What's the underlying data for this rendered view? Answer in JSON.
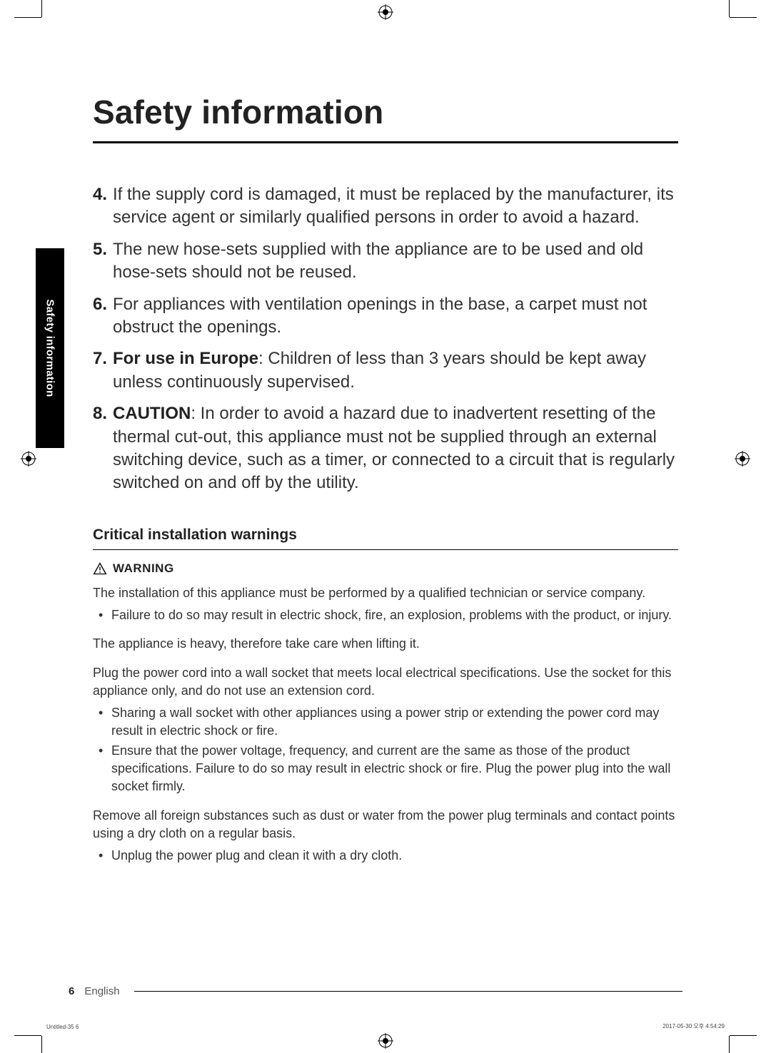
{
  "title": "Safety information",
  "side_tab": "Safety information",
  "numbered_items": [
    {
      "num": "4.",
      "bold_prefix": "",
      "text": "If the supply cord is damaged, it must be replaced by the manufacturer, its service agent or similarly qualified persons in order to avoid a hazard."
    },
    {
      "num": "5.",
      "bold_prefix": "",
      "text": "The new hose-sets supplied with the appliance are to be used and old hose-sets should not be reused."
    },
    {
      "num": "6.",
      "bold_prefix": "",
      "text": "For appliances with ventilation openings in the base, a carpet must not obstruct the openings."
    },
    {
      "num": "7.",
      "bold_prefix": "For use in Europe",
      "text": ": Children of less than 3 years should be kept away unless continuously supervised."
    },
    {
      "num": "8.",
      "bold_prefix": "CAUTION",
      "text": ": In order to avoid a hazard due to inadvertent resetting of the thermal cut-out, this appliance must not be supplied through an external switching device, such as a timer, or connected to a circuit that is regularly switched on and off by the utility."
    }
  ],
  "subsection_heading": "Critical installation warnings",
  "warning_label": "WARNING",
  "groups": [
    {
      "para": "The installation of this appliance must be performed by a qualified technician or service company.",
      "bullets": [
        "Failure to do so may result in electric shock, fire, an explosion, problems with the product, or injury."
      ]
    },
    {
      "para": "The appliance is heavy, therefore take care when lifting it.",
      "bullets": []
    },
    {
      "para": "Plug the power cord into a wall socket that meets local electrical specifications. Use the socket for this appliance only, and do not use an extension cord.",
      "bullets": [
        "Sharing a wall socket with other appliances using a power strip or extending the power cord may result in electric shock or fire.",
        "Ensure that the power voltage, frequency, and current are the same as those of the product specifications. Failure to do so may result in electric shock or fire. Plug the power plug into the wall socket firmly."
      ]
    },
    {
      "para": "Remove all foreign substances such as dust or water from the power plug terminals and contact points using a dry cloth on a regular basis.",
      "bullets": [
        "Unplug the power plug and clean it with a dry cloth."
      ]
    }
  ],
  "footer": {
    "page": "6",
    "lang": "English"
  },
  "tiny_left": "Untitled-35   6",
  "tiny_right": "2017-05-30   오후 4:54:29",
  "colors": {
    "text": "#333333",
    "black": "#000000",
    "rule": "#000000",
    "bg": "#ffffff"
  },
  "fonts": {
    "title_size": 46,
    "list_size": 24,
    "body_size": 18,
    "subhead_size": 21
  }
}
